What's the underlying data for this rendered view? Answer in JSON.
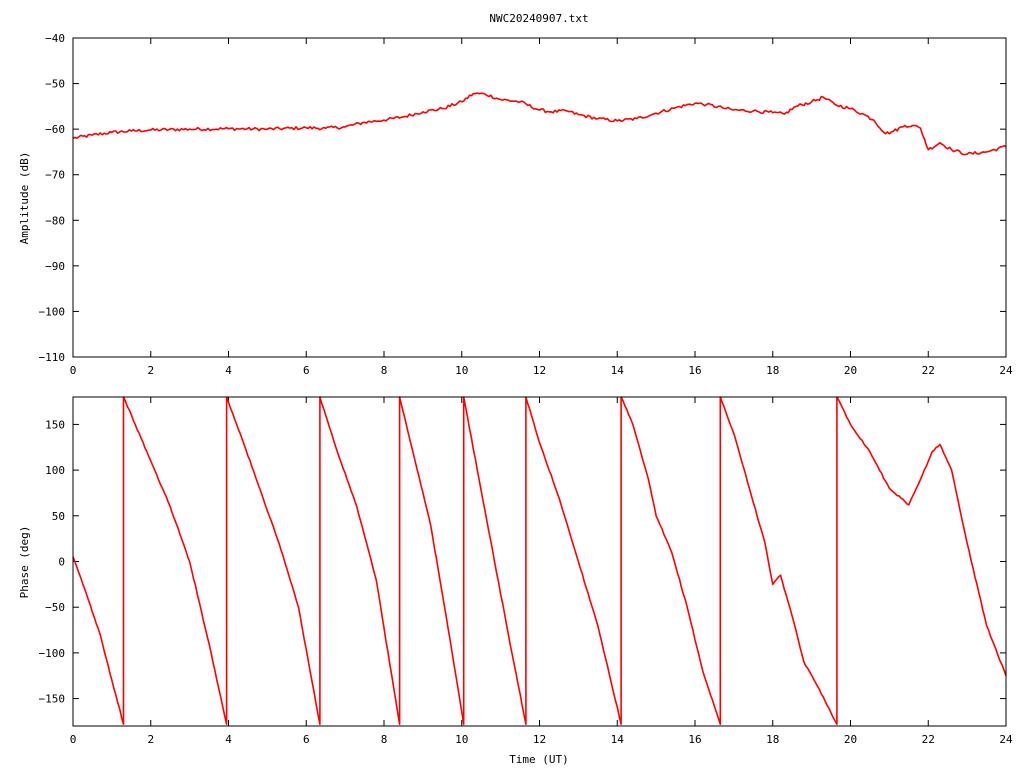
{
  "title": "NWC20240907.txt",
  "chart_data": [
    {
      "type": "line",
      "name": "amplitude",
      "xlabel": "",
      "ylabel": "Amplitude (dB)",
      "xlim": [
        0,
        24
      ],
      "ylim": [
        -110,
        -40
      ],
      "xticks": [
        0,
        2,
        4,
        6,
        8,
        10,
        12,
        14,
        16,
        18,
        20,
        22,
        24
      ],
      "xtick_labels": [
        "0",
        "2",
        "4",
        "6",
        "8",
        "10",
        "12",
        "14",
        "16",
        "18",
        "20",
        "22",
        "24"
      ],
      "yticks": [
        -110,
        -100,
        -90,
        -80,
        -70,
        -60,
        -50,
        -40
      ],
      "ytick_labels": [
        "−110",
        "−100",
        "−90",
        "−80",
        "−70",
        "−60",
        "−50",
        "−40"
      ],
      "color": "#ff0000",
      "x": [
        0,
        0.5,
        1,
        1.5,
        2,
        3,
        4,
        5,
        6,
        6.5,
        7,
        7.5,
        8,
        8.5,
        9,
        9.5,
        10,
        10.3,
        10.6,
        11,
        11.5,
        12,
        12.3,
        12.7,
        13,
        13.5,
        14,
        14.5,
        15,
        15.5,
        16,
        16.3,
        16.7,
        17,
        17.5,
        18,
        18.3,
        18.6,
        19,
        19.3,
        19.6,
        20,
        20.3,
        20.6,
        20.9,
        21.1,
        21.4,
        21.6,
        21.8,
        22,
        22.3,
        22.6,
        23,
        23.5,
        24
      ],
      "y": [
        -62,
        -61.3,
        -60.7,
        -60.4,
        -60.2,
        -60,
        -59.9,
        -60,
        -59.7,
        -59.8,
        -59.5,
        -58.5,
        -58,
        -57.3,
        -56.2,
        -55.5,
        -54,
        -52.2,
        -52.3,
        -53.5,
        -54,
        -55.8,
        -56.2,
        -56,
        -56.8,
        -57.7,
        -58.2,
        -57.7,
        -56.5,
        -55.3,
        -54.3,
        -54.6,
        -55.3,
        -55.8,
        -56,
        -56.4,
        -56.7,
        -55,
        -54,
        -53,
        -54.6,
        -55.5,
        -56.6,
        -58,
        -61,
        -60.5,
        -59.2,
        -59.2,
        -59.8,
        -64.5,
        -63,
        -64.5,
        -65.5,
        -65,
        -63.8
      ]
    },
    {
      "type": "line",
      "name": "phase",
      "xlabel": "Time (UT)",
      "ylabel": "Phase (deg)",
      "xlim": [
        0,
        24
      ],
      "ylim": [
        -180,
        180
      ],
      "xticks": [
        0,
        2,
        4,
        6,
        8,
        10,
        12,
        14,
        16,
        18,
        20,
        22,
        24
      ],
      "xtick_labels": [
        "0",
        "2",
        "4",
        "6",
        "8",
        "10",
        "12",
        "14",
        "16",
        "18",
        "20",
        "22",
        "24"
      ],
      "yticks": [
        -150,
        -100,
        -50,
        0,
        50,
        100,
        150
      ],
      "ytick_labels": [
        "−150",
        "−100",
        "−50",
        "0",
        "50",
        "100",
        "150"
      ],
      "color": "#ff0000",
      "wraps": [
        1.3,
        3.95,
        6.35,
        8.4,
        10.05,
        11.65,
        14.1,
        16.65,
        19.65
      ],
      "x": [
        0,
        0.3,
        0.7,
        1.0,
        1.3,
        1.3,
        1.6,
        2.0,
        2.5,
        3.0,
        3.5,
        3.95,
        3.95,
        4.3,
        4.8,
        5.3,
        5.8,
        6.35,
        6.35,
        6.8,
        7.3,
        7.8,
        8.4,
        8.4,
        8.8,
        9.2,
        9.6,
        10.05,
        10.05,
        10.4,
        10.8,
        11.2,
        11.65,
        11.65,
        12.0,
        12.5,
        13.0,
        13.5,
        14.1,
        14.1,
        14.4,
        14.8,
        15.0,
        15.4,
        15.8,
        16.2,
        16.65,
        16.65,
        17.0,
        17.4,
        17.8,
        18.0,
        18.2,
        18.5,
        18.8,
        19.2,
        19.65,
        19.65,
        20.0,
        20.5,
        21.0,
        21.5,
        21.8,
        22.1,
        22.3,
        22.6,
        23.0,
        23.5,
        24.0
      ],
      "y": [
        5,
        -30,
        -80,
        -130,
        -178,
        180,
        150,
        110,
        60,
        0,
        -90,
        -178,
        180,
        140,
        80,
        20,
        -50,
        -178,
        180,
        120,
        60,
        -20,
        -178,
        180,
        110,
        40,
        -60,
        -178,
        180,
        100,
        10,
        -80,
        -178,
        180,
        130,
        70,
        0,
        -70,
        -178,
        180,
        150,
        90,
        50,
        10,
        -50,
        -120,
        -178,
        180,
        140,
        80,
        20,
        -25,
        -15,
        -60,
        -110,
        -140,
        -178,
        180,
        150,
        120,
        80,
        62,
        90,
        120,
        128,
        100,
        20,
        -70,
        -125
      ]
    }
  ]
}
